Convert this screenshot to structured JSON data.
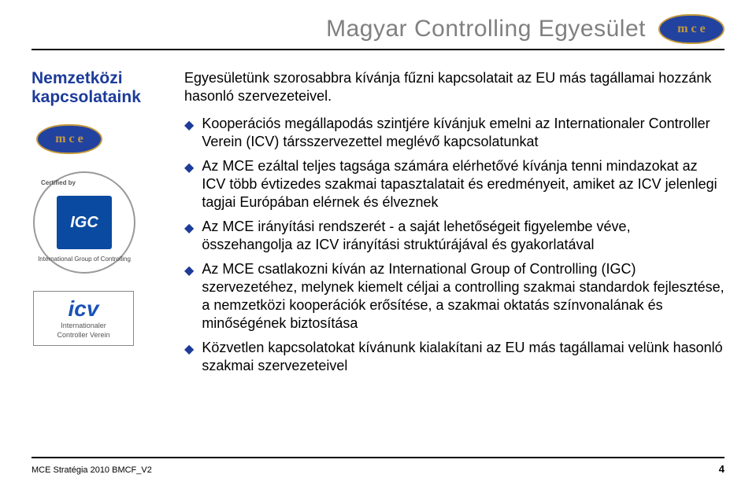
{
  "header": {
    "title": "Magyar Controlling Egyesület",
    "logo_letters": [
      "m",
      "c",
      "e"
    ]
  },
  "sidebar": {
    "title_line1": "Nemzetközi",
    "title_line2": "kapcsolataink",
    "igc_label": "IGC",
    "igc_cert": "Certified by",
    "igc_bottom": "International Group of Controlling",
    "icv_label": "icv",
    "icv_sub1": "Internationaler",
    "icv_sub2": "Controller Verein"
  },
  "content": {
    "intro": "Egyesületünk szorosabbra kívánja fűzni kapcsolatait az EU más tagállamai hozzánk hasonló szervezeteivel.",
    "bullets": [
      "Kooperációs megállapodás szintjére kívánjuk emelni az Internationaler Controller Verein (ICV) társszervezettel meglévő kapcsolatunkat",
      "Az MCE ezáltal teljes tagsága számára elérhetővé kívánja tenni mindazokat az ICV több évtizedes szakmai tapasztalatait és eredményeit, amiket az ICV jelenlegi tagjai Európában elérnek és élveznek",
      "Az MCE irányítási rendszerét - a saját lehetőségeit figyelembe véve, összehangolja az ICV irányítási struktúrájával és gyakorlatával",
      "Az MCE csatlakozni kíván az International Group of Controlling (IGC) szervezetéhez, melynek kiemelt céljai a controlling szakmai standardok fejlesztése, a nemzetközi kooperációk erősítése, a szakmai oktatás színvonalának és minőségének biztosítása",
      "Közvetlen kapcsolatokat kívánunk kialakítani az EU más tagállamai velünk hasonló szakmai szervezeteivel"
    ]
  },
  "footer": {
    "left": "MCE Stratégia 2010 BMCF_V2",
    "page": "4"
  },
  "colors": {
    "title_gray": "#808080",
    "brand_blue": "#1c3b9a",
    "logo_bg": "#2242a0",
    "logo_gold": "#c59a3a",
    "text": "#000000",
    "bg": "#ffffff"
  }
}
